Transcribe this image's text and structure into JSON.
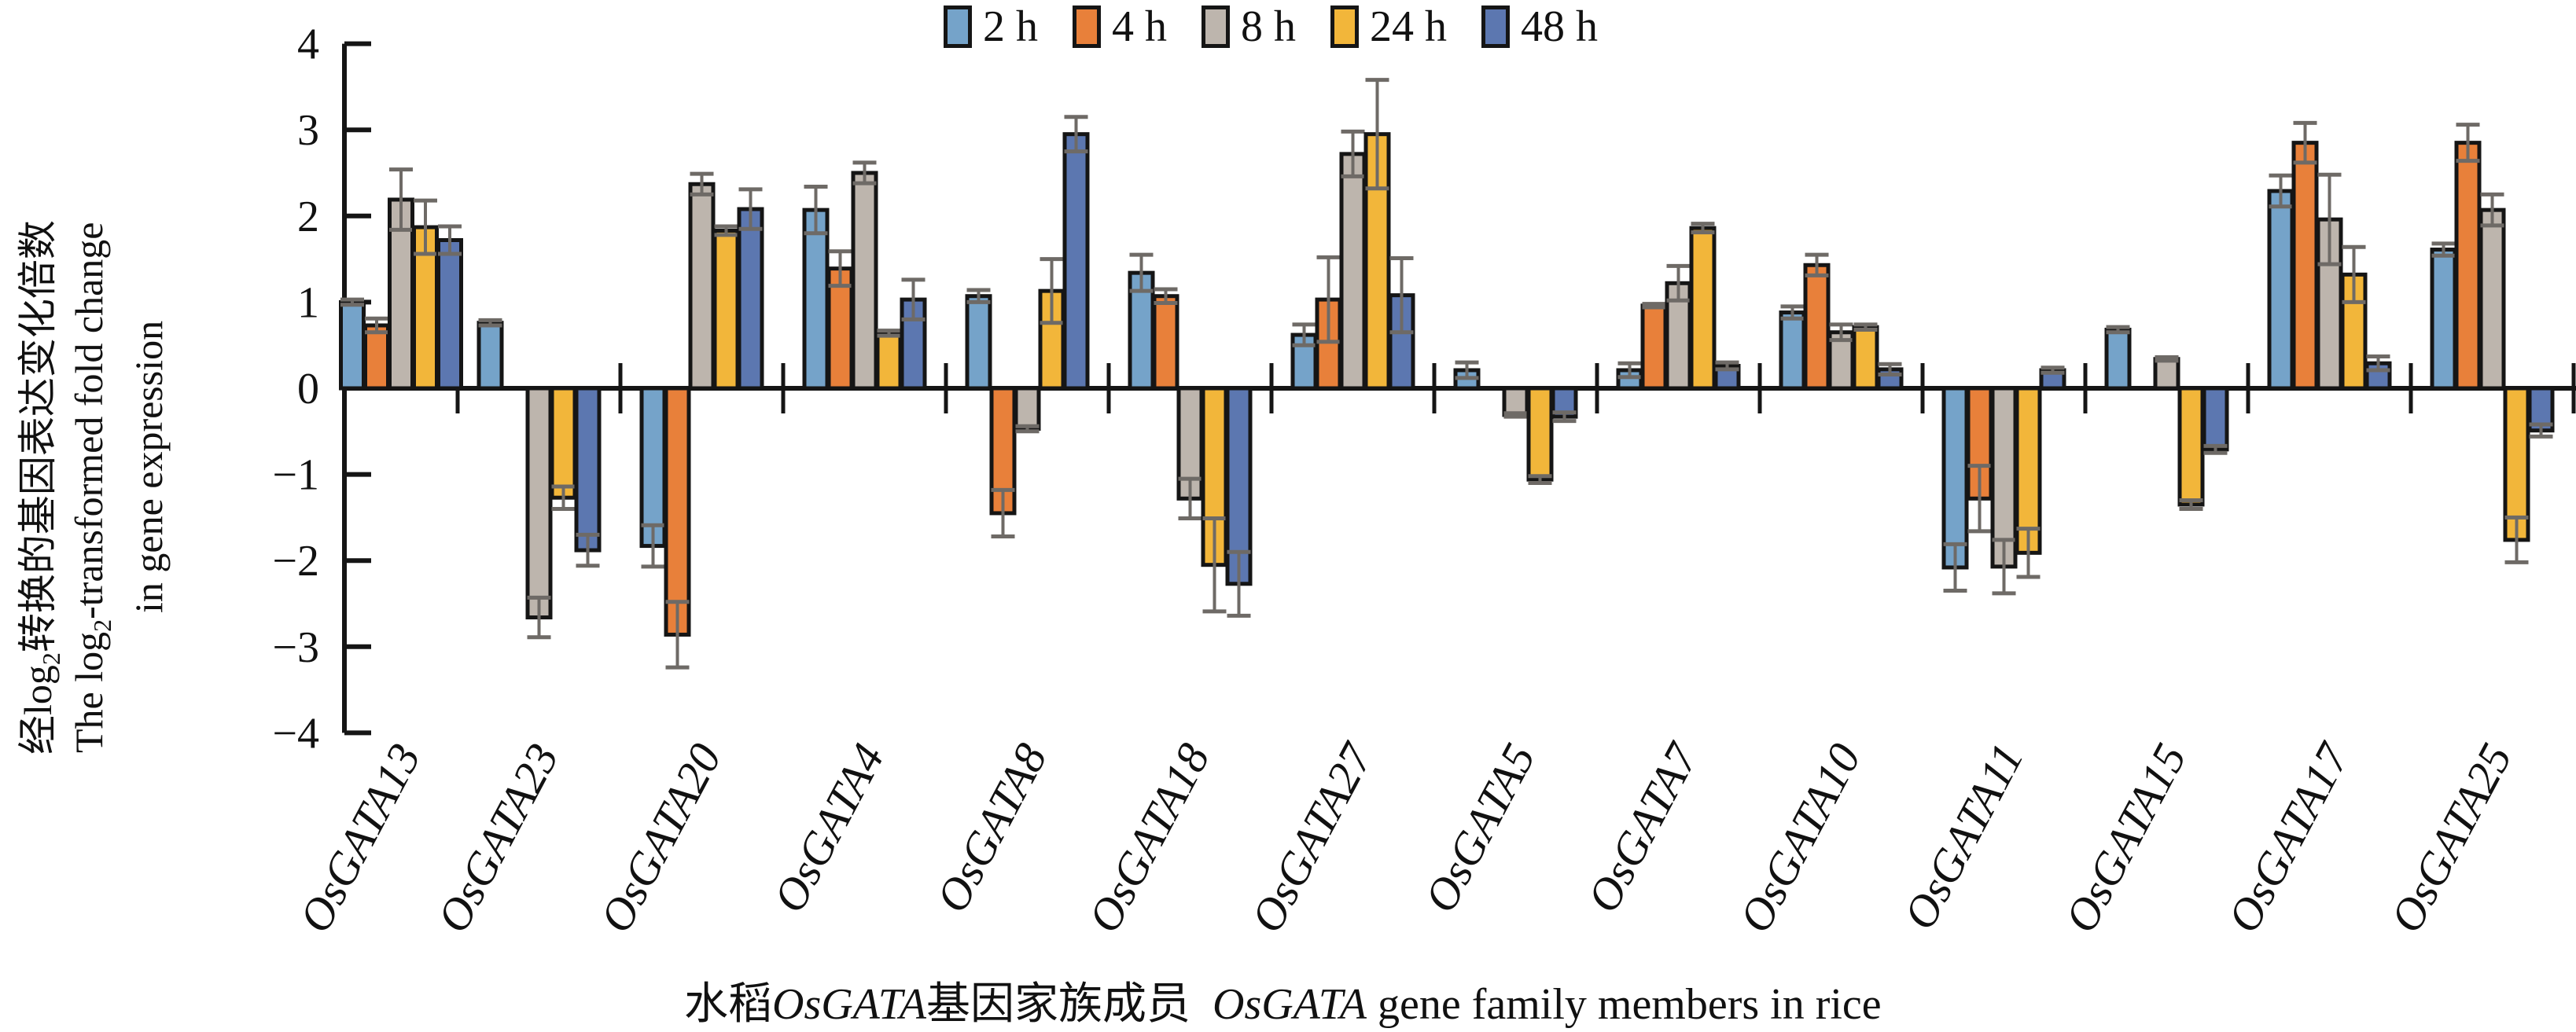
{
  "chart_data": {
    "type": "bar",
    "title": "",
    "xlabel_cn": "水稻",
    "xlabel_italic": "OsGATA",
    "xlabel_cn2": "基因家族成员",
    "xlabel_italic2": "OsGATA",
    "xlabel_en": " gene family members in rice",
    "ylabel_cn_prefix": "经log",
    "ylabel_cn_sub": "2",
    "ylabel_cn_suffix": "转换的基因表达变化倍数",
    "ylabel_en1_prefix": "The  log",
    "ylabel_en1_sub": "2",
    "ylabel_en1_suffix": "-transformed fold change",
    "ylabel_en2": "in gene expression",
    "ylim": [
      -4,
      4
    ],
    "yticks": [
      4,
      3,
      2,
      1,
      0,
      -1,
      -2,
      -3,
      -4
    ],
    "ytick_labels": [
      "4",
      "3",
      "2",
      "1",
      "0",
      "−1",
      "−2",
      "−3",
      "−4"
    ],
    "grid": false,
    "legend_position": "top-center",
    "categories": [
      "OsGATA13",
      "OsGATA23",
      "OsGATA20",
      "OsGATA4",
      "OsGATA8",
      "OsGATA18",
      "OsGATA27",
      "OsGATA5",
      "OsGATA7",
      "OsGATA10",
      "OsGATA11",
      "OsGATA15",
      "OsGATA17",
      "OsGATA25"
    ],
    "series": [
      {
        "name": "2 h",
        "color": "#75a3c9",
        "values": [
          1.0,
          0.76,
          -1.83,
          2.07,
          1.07,
          1.34,
          0.62,
          0.21,
          0.21,
          0.88,
          -2.08,
          0.68,
          2.29,
          1.61
        ],
        "errors": [
          0.03,
          0.03,
          0.24,
          0.27,
          0.07,
          0.21,
          0.12,
          0.09,
          0.08,
          0.07,
          0.27,
          0.03,
          0.18,
          0.07
        ]
      },
      {
        "name": "4 h",
        "color": "#e8803a",
        "values": [
          0.73,
          0,
          -2.86,
          1.39,
          -1.45,
          1.07,
          1.03,
          0,
          0.96,
          1.43,
          -1.28,
          0,
          2.85,
          2.85
        ],
        "errors": [
          0.08,
          0,
          0.38,
          0.2,
          0.27,
          0.08,
          0.49,
          0,
          0.02,
          0.12,
          0.38,
          0,
          0.23,
          0.21
        ]
      },
      {
        "name": "8 h",
        "color": "#bdb5ad",
        "values": [
          2.19,
          -2.66,
          2.37,
          2.5,
          -0.47,
          -1.28,
          2.72,
          -0.31,
          1.22,
          0.65,
          -2.07,
          0.34,
          1.96,
          2.07
        ],
        "errors": [
          0.35,
          0.23,
          0.12,
          0.12,
          0.03,
          0.23,
          0.26,
          0.02,
          0.2,
          0.09,
          0.31,
          0.02,
          0.52,
          0.18
        ]
      },
      {
        "name": "24 h",
        "color": "#f2b63a",
        "values": [
          1.87,
          -1.27,
          1.83,
          0.64,
          1.13,
          -2.05,
          2.95,
          -1.06,
          1.86,
          0.71,
          -1.91,
          -1.35,
          1.32,
          -1.76
        ],
        "errors": [
          0.31,
          0.13,
          0.05,
          0.03,
          0.37,
          0.54,
          0.63,
          0.04,
          0.05,
          0.03,
          0.28,
          0.05,
          0.32,
          0.26
        ]
      },
      {
        "name": "48 h",
        "color": "#5c77b0",
        "values": [
          1.72,
          -1.88,
          2.08,
          1.03,
          2.95,
          -2.27,
          1.08,
          -0.33,
          0.26,
          0.22,
          0.21,
          -0.71,
          0.29,
          -0.49
        ],
        "errors": [
          0.16,
          0.18,
          0.23,
          0.23,
          0.2,
          0.37,
          0.43,
          0.05,
          0.04,
          0.06,
          0.03,
          0.04,
          0.08,
          0.07
        ]
      }
    ]
  }
}
